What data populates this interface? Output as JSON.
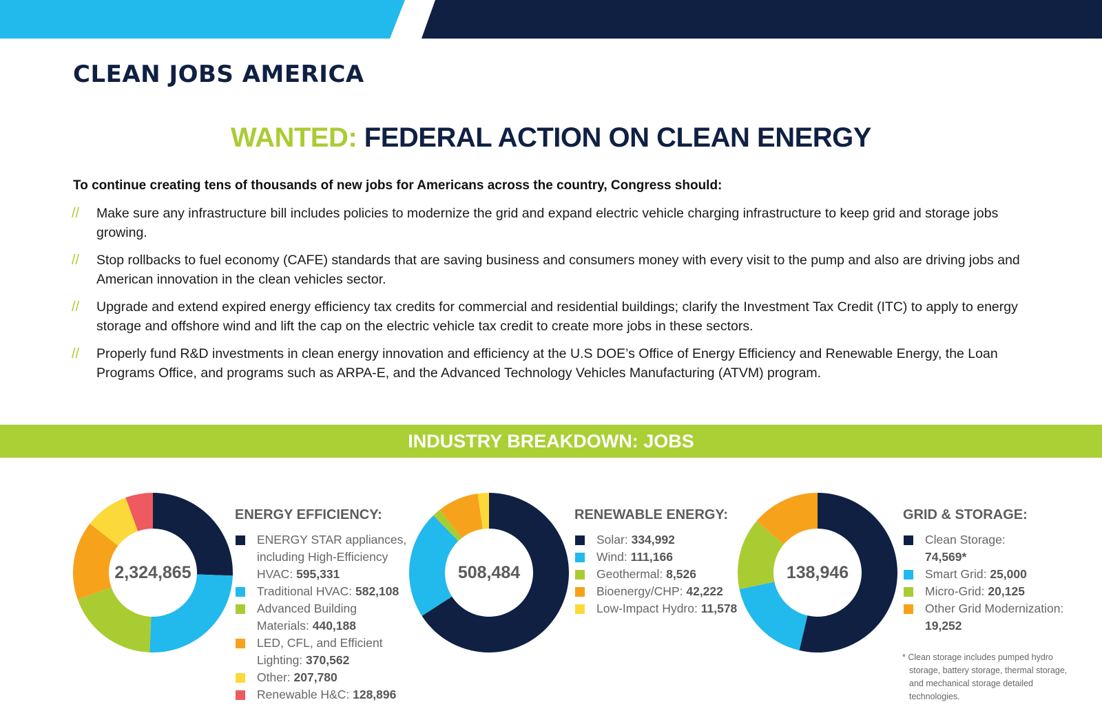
{
  "brand": "CLEAN JOBS AMERICA",
  "colors": {
    "navy": "#0f2043",
    "sky": "#22b9ec",
    "lime": "#aacc33",
    "orange": "#f7a21b",
    "yellow": "#fbd93a",
    "red": "#ee5a5f"
  },
  "headline": {
    "prefix": "WANTED:",
    "text": "FEDERAL ACTION ON CLEAN ENERGY"
  },
  "intro": "To continue creating tens of thousands of new jobs for Americans across the country, Congress should:",
  "bullet_mark": "//",
  "actions": [
    "Make sure any infrastructure bill includes policies to modernize the grid and expand electric vehicle charging infrastructure to keep grid and storage jobs growing.",
    "Stop rollbacks to fuel economy (CAFE) standards that are saving business and consumers money with every visit to the pump and also are driving jobs and American innovation in the clean vehicles sector.",
    "Upgrade and extend expired energy efficiency tax credits for commercial and residential buildings; clarify the Investment Tax Credit (ITC) to apply to energy storage and offshore wind and lift the cap on the electric vehicle tax credit to create more jobs in these sectors.",
    "Properly fund R&D investments in clean energy innovation and efficiency at the U.S DOE’s Office of Energy Efficiency and Renewable Energy, the Loan Programs Office, and programs such as ARPA-E, and the Advanced Technology Vehicles Manufacturing (ATVM) program."
  ],
  "section_title": "INDUSTRY BREAKDOWN: JOBS",
  "chart_data": [
    {
      "type": "pie",
      "title": "ENERGY EFFICIENCY:",
      "total": "2,324,865",
      "slices": [
        {
          "label": "ENERGY STAR appliances, including High-Efficiency HVAC:",
          "value": 595331,
          "display": "595,331",
          "color": "#0f2043"
        },
        {
          "label": "Traditional HVAC:",
          "value": 582108,
          "display": "582,108",
          "color": "#22b9ec"
        },
        {
          "label": "Advanced Building Materials:",
          "value": 440188,
          "display": "440,188",
          "color": "#aacc33"
        },
        {
          "label": "LED, CFL, and Efficient Lighting:",
          "value": 370562,
          "display": "370,562",
          "color": "#f7a21b"
        },
        {
          "label": "Other:",
          "value": 207780,
          "display": "207,780",
          "color": "#fbd93a"
        },
        {
          "label": "Renewable H&C:",
          "value": 128896,
          "display": "128,896",
          "color": "#ee5a5f"
        }
      ]
    },
    {
      "type": "pie",
      "title": "RENEWABLE ENERGY:",
      "total": "508,484",
      "slices": [
        {
          "label": "Solar:",
          "value": 334992,
          "display": "334,992",
          "color": "#0f2043"
        },
        {
          "label": "Wind:",
          "value": 111166,
          "display": "111,166",
          "color": "#22b9ec"
        },
        {
          "label": "Geothermal:",
          "value": 8526,
          "display": "8,526",
          "color": "#aacc33"
        },
        {
          "label": "Bioenergy/CHP:",
          "value": 42222,
          "display": "42,222",
          "color": "#f7a21b"
        },
        {
          "label": "Low-Impact Hydro:",
          "value": 11578,
          "display": "11,578",
          "color": "#fbd93a"
        }
      ]
    },
    {
      "type": "pie",
      "title": "GRID & STORAGE:",
      "total": "138,946",
      "slices": [
        {
          "label": "Clean Storage:",
          "value": 74569,
          "display": "74,569*",
          "color": "#0f2043"
        },
        {
          "label": "Smart Grid:",
          "value": 25000,
          "display": "25,000",
          "color": "#22b9ec"
        },
        {
          "label": "Micro-Grid:",
          "value": 20125,
          "display": "20,125",
          "color": "#aacc33"
        },
        {
          "label": "Other Grid Modernization:",
          "value": 19252,
          "display": "19,252",
          "color": "#f7a21b"
        }
      ]
    }
  ],
  "footnote": "* Clean storage includes pumped hydro storage, battery storage, thermal storage, and mechanical storage detailed technologies."
}
